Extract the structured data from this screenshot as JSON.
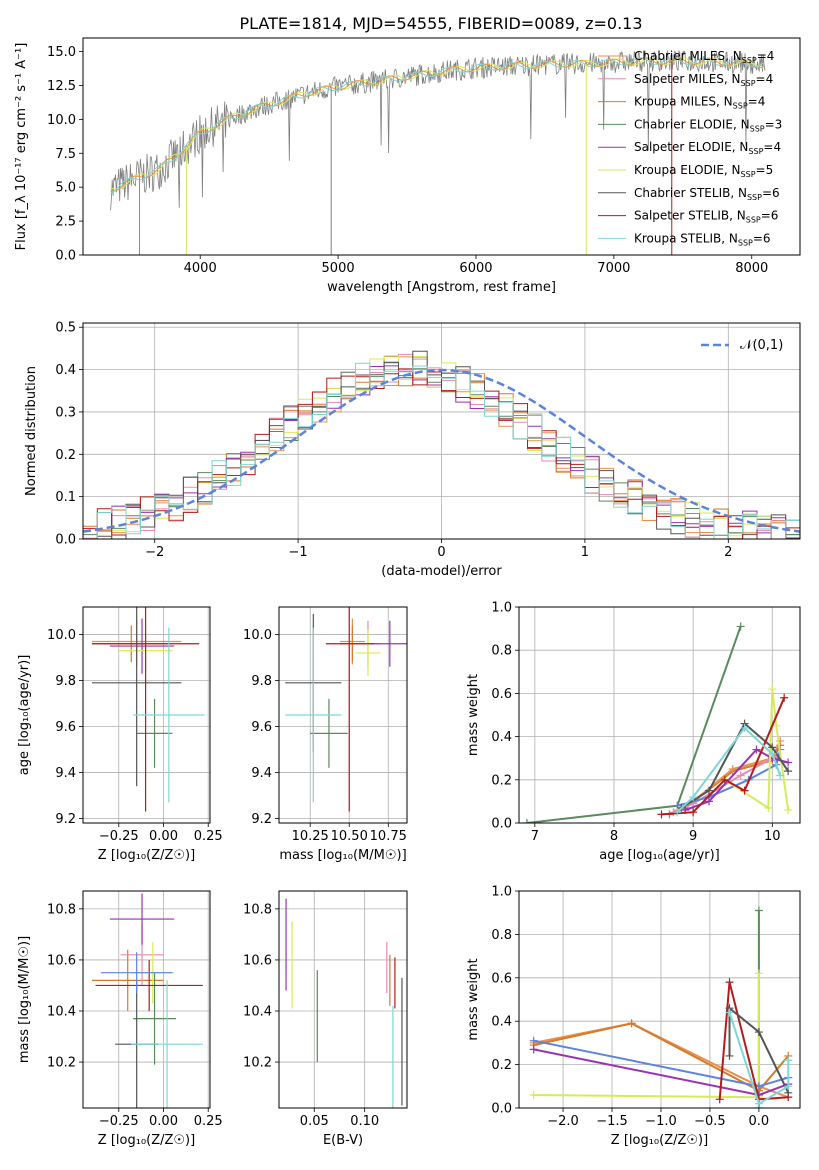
{
  "title": "PLATE=1814, MJD=54555, FIBERID=0089, z=0.13",
  "colors": {
    "chabrier_miles": "#e8914f",
    "salpeter_miles": "#e98ab2",
    "kroupa_miles": "#d9792a",
    "chabrier_elodie": "#5a8a5e",
    "salpeter_elodie": "#9b32b5",
    "kroupa_elodie": "#d8ea5a",
    "chabrier_stelib": "#555555",
    "salpeter_stelib": "#b21c1c",
    "kroupa_stelib": "#7fd6d6",
    "data": "#7f7f7f",
    "normal": "#5b84de",
    "teal": "#4aa7a7"
  },
  "chart_data": [
    {
      "id": "spectrum",
      "type": "line",
      "title": "PLATE=1814, MJD=54555, FIBERID=0089, z=0.13",
      "xlabel": "wavelength [Angstrom, rest frame]",
      "ylabel": "Flux [f_λ 10⁻¹⁷ erg cm⁻² s⁻¹ A⁻¹]",
      "xlim": [
        3150,
        8350
      ],
      "ylim": [
        0,
        16
      ],
      "xticks": [
        4000,
        5000,
        6000,
        7000,
        8000
      ],
      "yticks": [
        0.0,
        2.5,
        5.0,
        7.5,
        10.0,
        12.5,
        15.0
      ],
      "legend_position": "top-right",
      "legend": [
        {
          "label": "Chabrier MILES, N",
          "sub": "SSP",
          "value": "=4",
          "color": "#e8914f"
        },
        {
          "label": "Salpeter MILES, N",
          "sub": "SSP",
          "value": "=4",
          "color": "#e98ab2"
        },
        {
          "label": "Kroupa MILES, N",
          "sub": "SSP",
          "value": "=4",
          "color": "#d9792a"
        },
        {
          "label": "Chabrier ELODIE, N",
          "sub": "SSP",
          "value": "=3",
          "color": "#5a8a5e"
        },
        {
          "label": "Salpeter ELODIE, N",
          "sub": "SSP",
          "value": "=4",
          "color": "#9b32b5"
        },
        {
          "label": "Kroupa ELODIE, N",
          "sub": "SSP",
          "value": "=5",
          "color": "#d8ea5a"
        },
        {
          "label": "Chabrier STELIB, N",
          "sub": "SSP",
          "value": "=6",
          "color": "#555555"
        },
        {
          "label": "Salpeter STELIB, N",
          "sub": "SSP",
          "value": "=6",
          "color": "#b21c1c"
        },
        {
          "label": "Kroupa STELIB, N",
          "sub": "SSP",
          "value": "=6",
          "color": "#7fd6d6"
        }
      ],
      "continuum": {
        "x": [
          3350,
          3500,
          3700,
          3900,
          4000,
          4200,
          4400,
          4600,
          4800,
          5000,
          5200,
          5400,
          5600,
          5800,
          6000,
          6200,
          6400,
          6600,
          6800,
          7000,
          7200,
          7400,
          7600,
          7800,
          8000,
          8100
        ],
        "y": [
          4.8,
          5.5,
          6.3,
          8.0,
          9.0,
          10.0,
          10.8,
          11.4,
          12.0,
          12.4,
          12.7,
          13.0,
          13.3,
          13.6,
          13.8,
          13.9,
          14.0,
          14.1,
          14.1,
          14.2,
          14.3,
          14.3,
          14.3,
          14.2,
          14.1,
          14.0
        ]
      }
    },
    {
      "id": "residuals",
      "type": "bar",
      "xlabel": "(data-model)/error",
      "ylabel": "Normed distribution",
      "xlim": [
        -2.5,
        2.5
      ],
      "ylim": [
        0,
        0.51
      ],
      "xticks": [
        -2,
        -1,
        0,
        1,
        2
      ],
      "yticks": [
        0.0,
        0.1,
        0.2,
        0.3,
        0.4,
        0.5
      ],
      "legend": "𝒩(0,1)",
      "legend_position": "top-right",
      "bin_width": 0.1,
      "base": [
        0.02,
        0.028,
        0.036,
        0.046,
        0.058,
        0.071,
        0.087,
        0.105,
        0.124,
        0.146,
        0.169,
        0.193,
        0.218,
        0.244,
        0.27,
        0.295,
        0.32,
        0.343,
        0.363,
        0.38,
        0.393,
        0.402,
        0.406,
        0.403,
        0.396,
        0.384,
        0.368,
        0.349,
        0.327,
        0.302,
        0.277,
        0.251,
        0.225,
        0.199,
        0.175,
        0.152,
        0.131,
        0.112,
        0.095,
        0.08,
        0.067,
        0.055,
        0.045,
        0.037,
        0.03,
        0.025,
        0.021,
        0.018,
        0.015,
        0.013
      ]
    },
    {
      "id": "age-vs-z",
      "type": "scatter",
      "xlabel": "Z [log₁₀(Z/Z☉)]",
      "ylabel": "age  [log₁₀(age/yr)]",
      "xlim": [
        -0.45,
        0.26
      ],
      "ylim": [
        9.18,
        10.12
      ],
      "xticks": [
        -0.25,
        0.0,
        0.25
      ],
      "xticklabels": [
        "−0.25",
        "0.00",
        "0.25"
      ],
      "yticks": [
        9.2,
        9.4,
        9.6,
        9.8,
        10.0
      ],
      "points": [
        {
          "x": -0.15,
          "y": 9.97,
          "xerr": 0.25,
          "yerr": 0.1,
          "c": "#e8914f"
        },
        {
          "x": -0.15,
          "y": 9.96,
          "xerr": 0.15,
          "yerr": 0.1,
          "c": "#e98ab2"
        },
        {
          "x": -0.18,
          "y": 9.96,
          "xerr": 0.22,
          "yerr": 0.08,
          "c": "#d9792a"
        },
        {
          "x": -0.05,
          "y": 9.57,
          "xerr": 0.1,
          "yerr": 0.15,
          "c": "#5a8a5e"
        },
        {
          "x": -0.12,
          "y": 9.95,
          "xerr": 0.18,
          "yerr": 0.12,
          "c": "#9b32b5"
        },
        {
          "x": -0.1,
          "y": 9.93,
          "xerr": 0.15,
          "yerr": 0.1,
          "c": "#d8ea5a"
        },
        {
          "x": -0.15,
          "y": 9.79,
          "xerr": 0.25,
          "yerr": 0.45,
          "c": "#555555"
        },
        {
          "x": -0.1,
          "y": 9.96,
          "xerr": 0.3,
          "yerr": 0.73,
          "c": "#b21c1c"
        },
        {
          "x": 0.03,
          "y": 9.65,
          "xerr": 0.2,
          "yerr": 0.38,
          "c": "#7fd6d6"
        }
      ]
    },
    {
      "id": "age-vs-mass",
      "type": "scatter",
      "xlabel": "mass [log₁₀(M/M☉)]",
      "ylabel": "",
      "xlim": [
        10.05,
        10.87
      ],
      "ylim": [
        9.18,
        10.12
      ],
      "xticks": [
        10.25,
        10.5,
        10.75
      ],
      "xticklabels": [
        "10.25",
        "10.50",
        "10.75"
      ],
      "yticks": [
        9.2,
        9.4,
        9.6,
        9.8,
        10.0
      ],
      "points": [
        {
          "x": 10.52,
          "y": 9.97,
          "xerr": 0.08,
          "yerr": 0.1,
          "c": "#e8914f"
        },
        {
          "x": 10.62,
          "y": 9.96,
          "xerr": 0.08,
          "yerr": 0.1,
          "c": "#e98ab2"
        },
        {
          "x": 10.52,
          "y": 9.96,
          "xerr": 0.08,
          "yerr": 0.08,
          "c": "#d9792a"
        },
        {
          "x": 10.37,
          "y": 9.57,
          "xerr": 0.12,
          "yerr": 0.15,
          "c": "#5a8a5e"
        },
        {
          "x": 10.76,
          "y": 9.96,
          "xerr": 0.12,
          "yerr": 0.1,
          "c": "#9b32b5"
        },
        {
          "x": 10.62,
          "y": 9.92,
          "xerr": 0.08,
          "yerr": 0.1,
          "c": "#d8ea5a"
        },
        {
          "x": 10.27,
          "y": 9.79,
          "xerr": 0.18,
          "yerr": 0.3,
          "c": "#555555"
        },
        {
          "x": 10.5,
          "y": 9.96,
          "xerr": 0.15,
          "yerr": 0.73,
          "c": "#b21c1c"
        },
        {
          "x": 10.27,
          "y": 9.65,
          "xerr": 0.18,
          "yerr": 0.38,
          "c": "#7fd6d6"
        }
      ]
    },
    {
      "id": "weight-vs-age",
      "type": "line",
      "xlabel": "age  [log₁₀(age/yr)]",
      "ylabel": "mass weight",
      "xlim": [
        6.8,
        10.35
      ],
      "ylim": [
        0,
        1
      ],
      "xticks": [
        7,
        8,
        9,
        10
      ],
      "yticks": [
        0.0,
        0.2,
        0.4,
        0.6,
        0.8,
        1.0
      ],
      "series": [
        {
          "c": "#5a8a5e",
          "x": [
            6.9,
            8.8,
            9.6
          ],
          "y": [
            0.0,
            0.08,
            0.91
          ]
        },
        {
          "c": "#d9792a",
          "x": [
            8.7,
            8.9,
            9.5,
            10.0,
            10.1
          ],
          "y": [
            0.04,
            0.07,
            0.24,
            0.29,
            0.36
          ]
        },
        {
          "c": "#e8914f",
          "x": [
            8.8,
            9.0,
            9.5,
            10.0,
            10.1
          ],
          "y": [
            0.06,
            0.1,
            0.25,
            0.3,
            0.38
          ]
        },
        {
          "c": "#e98ab2",
          "x": [
            8.75,
            9.0,
            9.6,
            10.05
          ],
          "y": [
            0.05,
            0.09,
            0.22,
            0.31
          ]
        },
        {
          "c": "#5b84de",
          "x": [
            8.8,
            9.2,
            9.7,
            10.05,
            10.1
          ],
          "y": [
            0.08,
            0.12,
            0.2,
            0.27,
            0.34
          ]
        },
        {
          "c": "#9b32b5",
          "x": [
            8.9,
            9.2,
            9.8,
            10.0,
            10.2
          ],
          "y": [
            0.06,
            0.1,
            0.34,
            0.3,
            0.28
          ]
        },
        {
          "c": "#d8ea5a",
          "x": [
            9.4,
            9.95,
            10.0,
            10.05,
            10.2
          ],
          "y": [
            0.2,
            0.07,
            0.62,
            0.45,
            0.06
          ]
        },
        {
          "c": "#555555",
          "x": [
            8.85,
            9.2,
            9.65,
            10.0,
            10.2
          ],
          "y": [
            0.07,
            0.15,
            0.46,
            0.35,
            0.24
          ]
        },
        {
          "c": "#b21c1c",
          "x": [
            8.6,
            9.0,
            9.4,
            9.65,
            10.15
          ],
          "y": [
            0.04,
            0.05,
            0.2,
            0.15,
            0.58
          ]
        },
        {
          "c": "#7fd6d6",
          "x": [
            8.8,
            9.0,
            9.65,
            10.0,
            10.1
          ],
          "y": [
            0.05,
            0.12,
            0.44,
            0.32,
            0.22
          ]
        }
      ]
    },
    {
      "id": "mass-vs-z",
      "type": "scatter",
      "xlabel": "Z [log₁₀(Z/Z☉)]",
      "ylabel": "mass [log₁₀(M/M☉)]",
      "xlim": [
        -0.45,
        0.26
      ],
      "ylim": [
        10.02,
        10.87
      ],
      "xticks": [
        -0.25,
        0.0,
        0.25
      ],
      "xticklabels": [
        "−0.25",
        "0.00",
        "0.25"
      ],
      "yticks": [
        10.2,
        10.4,
        10.6,
        10.8
      ],
      "points": [
        {
          "x": -0.2,
          "y": 10.52,
          "xerr": 0.2,
          "yerr": 0.12,
          "c": "#d9792a"
        },
        {
          "x": -0.12,
          "y": 10.62,
          "xerr": 0.12,
          "yerr": 0.12,
          "c": "#e98ab2"
        },
        {
          "x": -0.05,
          "y": 10.37,
          "xerr": 0.12,
          "yerr": 0.18,
          "c": "#5a8a5e"
        },
        {
          "x": -0.12,
          "y": 10.76,
          "xerr": 0.18,
          "yerr": 0.1,
          "c": "#9b32b5"
        },
        {
          "x": -0.06,
          "y": 10.55,
          "xerr": 0.12,
          "yerr": 0.12,
          "c": "#d8ea5a"
        },
        {
          "x": -0.15,
          "y": 10.27,
          "xerr": 0.12,
          "yerr": 0.25,
          "c": "#555555"
        },
        {
          "x": -0.08,
          "y": 10.5,
          "xerr": 0.3,
          "yerr": 0.1,
          "c": "#b21c1c"
        },
        {
          "x": 0.02,
          "y": 10.27,
          "xerr": 0.2,
          "yerr": 0.25,
          "c": "#7fd6d6"
        },
        {
          "x": -0.15,
          "y": 10.55,
          "xerr": 0.2,
          "yerr": 0.08,
          "c": "#5b84de"
        }
      ]
    },
    {
      "id": "mass-vs-ebv",
      "type": "scatter",
      "xlabel": "E(B-V)",
      "ylabel": "",
      "xlim": [
        0.015,
        0.142
      ],
      "ylim": [
        10.02,
        10.87
      ],
      "xticks": [
        0.05,
        0.1
      ],
      "xticklabels": [
        "0.05",
        "0.10"
      ],
      "yticks": [
        10.2,
        10.4,
        10.6,
        10.8
      ],
      "points": [
        {
          "x": 0.022,
          "y": 10.66,
          "xerr": 0,
          "yerr": 0.18,
          "c": "#9b32b5"
        },
        {
          "x": 0.028,
          "y": 10.58,
          "xerr": 0,
          "yerr": 0.17,
          "c": "#d8ea5a"
        },
        {
          "x": 0.053,
          "y": 10.38,
          "xerr": 0,
          "yerr": 0.18,
          "c": "#5a8a5e"
        },
        {
          "x": 0.122,
          "y": 10.57,
          "xerr": 0,
          "yerr": 0.1,
          "c": "#e98ab2"
        },
        {
          "x": 0.125,
          "y": 10.52,
          "xerr": 0,
          "yerr": 0.1,
          "c": "#d9792a"
        },
        {
          "x": 0.13,
          "y": 10.51,
          "xerr": 0,
          "yerr": 0.1,
          "c": "#b21c1c"
        },
        {
          "x": 0.128,
          "y": 10.22,
          "xerr": 0,
          "yerr": 0.2,
          "c": "#7fd6d6"
        },
        {
          "x": 0.137,
          "y": 10.28,
          "xerr": 0,
          "yerr": 0.25,
          "c": "#555555"
        }
      ]
    },
    {
      "id": "weight-vs-z",
      "type": "line",
      "xlabel": "Z [log₁₀(Z/Z☉)]",
      "ylabel": "mass weight",
      "xlim": [
        -2.45,
        0.42
      ],
      "ylim": [
        0,
        1
      ],
      "xticks": [
        -2.0,
        -1.5,
        -1.0,
        -0.5,
        0.0
      ],
      "xticklabels": [
        "−2.0",
        "−1.5",
        "−1.0",
        "−0.5",
        "0.0"
      ],
      "yticks": [
        0.0,
        0.2,
        0.4,
        0.6,
        0.8,
        1.0
      ],
      "series": [
        {
          "c": "#5a8a5e",
          "x": [
            0.0,
            0.0,
            0.0
          ],
          "y": [
            0.08,
            0.91,
            0.0
          ]
        },
        {
          "c": "#d8ea5a",
          "x": [
            -2.3,
            0.0,
            0.0
          ],
          "y": [
            0.06,
            0.05,
            0.62
          ]
        },
        {
          "c": "#e8914f",
          "x": [
            -2.3,
            -1.3,
            0.0,
            0.3
          ],
          "y": [
            0.3,
            0.39,
            0.1,
            0.05
          ]
        },
        {
          "c": "#d9792a",
          "x": [
            -2.3,
            -1.3,
            0.0,
            0.3
          ],
          "y": [
            0.29,
            0.39,
            0.08,
            0.24
          ]
        },
        {
          "c": "#5b84de",
          "x": [
            -2.3,
            0.0,
            0.3
          ],
          "y": [
            0.31,
            0.1,
            0.14
          ]
        },
        {
          "c": "#9b32b5",
          "x": [
            -2.3,
            0.0,
            0.3
          ],
          "y": [
            0.27,
            0.06,
            0.11
          ]
        },
        {
          "c": "#b21c1c",
          "x": [
            -0.4,
            -0.3,
            0.0,
            0.3
          ],
          "y": [
            0.04,
            0.58,
            0.04,
            0.05
          ]
        },
        {
          "c": "#555555",
          "x": [
            -0.3,
            -0.3,
            0.0,
            0.3
          ],
          "y": [
            0.24,
            0.46,
            0.35,
            0.07
          ]
        },
        {
          "c": "#7fd6d6",
          "x": [
            -0.3,
            0.0,
            0.3,
            0.3
          ],
          "y": [
            0.44,
            0.02,
            0.1,
            0.22
          ]
        }
      ]
    }
  ]
}
